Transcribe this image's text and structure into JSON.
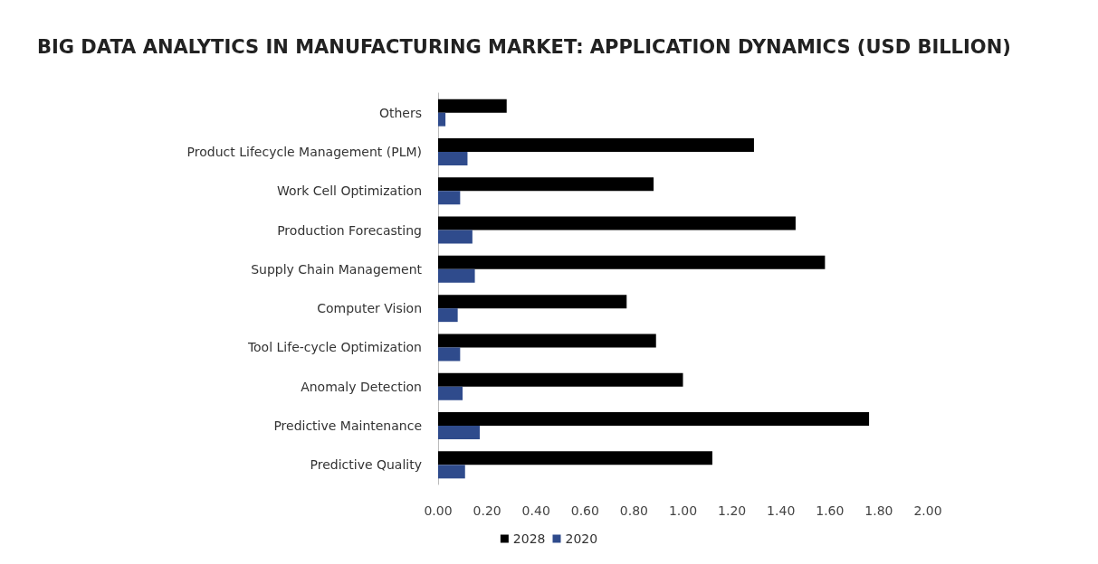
{
  "chart_data": {
    "type": "bar",
    "orientation": "horizontal",
    "title": "BIG DATA ANALYTICS IN MANUFACTURING MARKET: APPLICATION DYNAMICS (USD BILLION)",
    "categories": [
      "Others",
      "Product Lifecycle Management (PLM)",
      "Work Cell Optimization",
      "Production Forecasting",
      "Supply Chain Management",
      "Computer Vision",
      "Tool Life-cycle Optimization",
      "Anomaly Detection",
      "Predictive Maintenance",
      "Predictive Quality"
    ],
    "series": [
      {
        "name": "2028",
        "color": "#000000",
        "values": [
          0.28,
          1.29,
          0.88,
          1.46,
          1.58,
          0.77,
          0.89,
          1.0,
          1.76,
          1.12
        ]
      },
      {
        "name": "2020",
        "color": "#2f4b8c",
        "values": [
          0.03,
          0.12,
          0.09,
          0.14,
          0.15,
          0.08,
          0.09,
          0.1,
          0.17,
          0.11
        ]
      }
    ],
    "xlim": [
      0,
      2
    ],
    "xticks": [
      {
        "value": 0,
        "label": "0.00"
      },
      {
        "value": 0.2,
        "label": "0.20"
      },
      {
        "value": 0.4,
        "label": "0.40"
      },
      {
        "value": 0.6,
        "label": "0.60"
      },
      {
        "value": 0.8,
        "label": "0.80"
      },
      {
        "value": 1,
        "label": "1.00"
      },
      {
        "value": 1.2,
        "label": "1.20"
      },
      {
        "value": 1.4,
        "label": "1.40"
      },
      {
        "value": 1.6,
        "label": "1.60"
      },
      {
        "value": 1.8,
        "label": "1.80"
      },
      {
        "value": 2,
        "label": "2.00"
      }
    ],
    "grid": false,
    "legend": "bottom"
  }
}
